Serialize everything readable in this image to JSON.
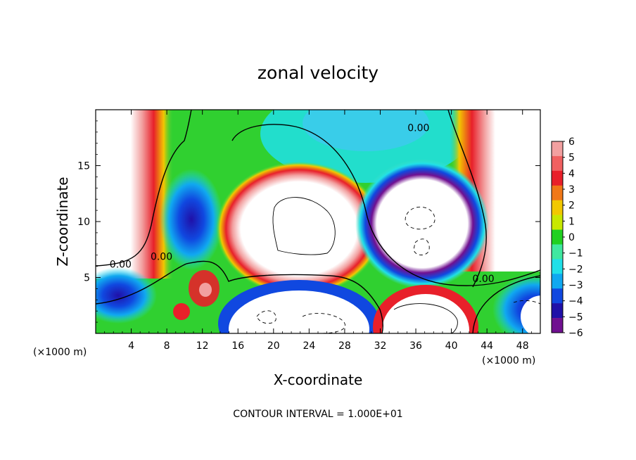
{
  "chart_data": {
    "type": "heatmap",
    "title": "zonal velocity",
    "xlabel": "X-coordinate",
    "ylabel": "Z-coordinate",
    "x_unit": "(×1000 m)",
    "z_unit": "(×1000 m)",
    "footer": "CONTOUR INTERVAL = 1.000E+01",
    "xlim": [
      0,
      50
    ],
    "ylim": [
      0,
      20
    ],
    "x_ticks": [
      4,
      8,
      12,
      16,
      20,
      24,
      28,
      32,
      36,
      40,
      44,
      48
    ],
    "x_tick_labels": [
      "4",
      "8",
      "12",
      "16",
      "20",
      "24",
      "28",
      "32",
      "36",
      "40",
      "44",
      "48"
    ],
    "y_ticks": [
      5,
      10,
      15
    ],
    "y_tick_labels": [
      "5",
      "10",
      "15"
    ],
    "colorbar": {
      "levels": [
        6,
        5,
        4,
        3,
        2,
        1,
        0,
        -1,
        -2,
        -3,
        -4,
        -5,
        -6
      ],
      "labels": [
        "6",
        "5",
        "4",
        "3",
        "2",
        "1",
        "0",
        "−1",
        "−2",
        "−3",
        "−4",
        "−5",
        "−6"
      ],
      "colors": [
        "#f2a0a0",
        "#f06060",
        "#e8202a",
        "#f07818",
        "#f2c800",
        "#c8e800",
        "#20d020",
        "#40e8a0",
        "#20e0e8",
        "#10a8f0",
        "#1048e0",
        "#2010a8",
        "#701090"
      ]
    },
    "contour_labels": [
      {
        "text": "0.00",
        "x": 36.3,
        "z": 18.4
      },
      {
        "text": "0.00",
        "x": 2.8,
        "z": 6.2
      },
      {
        "text": "0.00",
        "x": 7.4,
        "z": 6.9
      },
      {
        "text": "0.00",
        "x": 43.6,
        "z": 4.9
      }
    ]
  }
}
